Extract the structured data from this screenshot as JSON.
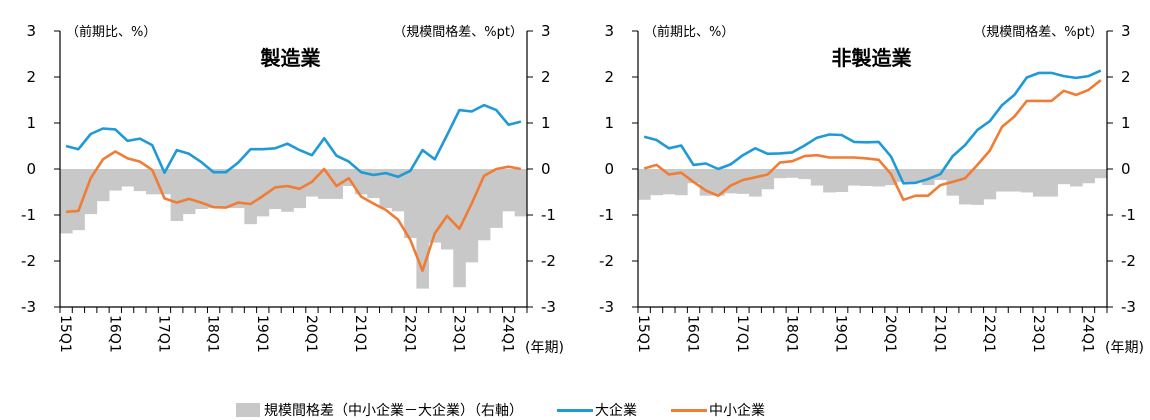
{
  "legend": {
    "bar_label": "規模間格差（中小企業－大企業）（右軸）",
    "large_label": "大企業",
    "small_label": "中小企業"
  },
  "colors": {
    "bar": "#c8c8c8",
    "large": "#1f9ad6",
    "small": "#f07c35"
  },
  "chart_data": [
    {
      "type": "bar+line",
      "title": "製造業",
      "left_axis_label": "（前期比、%）",
      "right_axis_label": "（規模間格差、%pt）",
      "x_unit_label": "(年期)",
      "ylim": [
        -3,
        3
      ],
      "y2lim": [
        -3,
        3
      ],
      "yticks": [
        -3,
        -2,
        -1,
        0,
        1,
        2,
        3
      ],
      "xtick_labels": [
        "15Q1",
        "16Q1",
        "17Q1",
        "18Q1",
        "19Q1",
        "20Q1",
        "21Q1",
        "22Q1",
        "23Q1",
        "24Q1"
      ],
      "x_start": "15Q1",
      "x_end": "24Q2",
      "series": [
        {
          "name": "大企業",
          "kind": "line",
          "axis": "left",
          "values": [
            0.5,
            0.43,
            0.76,
            0.88,
            0.86,
            0.61,
            0.66,
            0.52,
            -0.08,
            0.41,
            0.33,
            0.15,
            -0.07,
            -0.07,
            0.14,
            0.43,
            0.43,
            0.45,
            0.55,
            0.41,
            0.3,
            0.67,
            0.29,
            0.16,
            -0.07,
            -0.13,
            -0.09,
            -0.17,
            -0.04,
            0.41,
            0.21,
            0.74,
            1.28,
            1.25,
            1.39,
            1.28,
            0.96,
            1.03
          ]
        },
        {
          "name": "中小企業",
          "kind": "line",
          "axis": "left",
          "values": [
            -0.93,
            -0.91,
            -0.2,
            0.21,
            0.38,
            0.23,
            0.16,
            -0.02,
            -0.64,
            -0.73,
            -0.65,
            -0.73,
            -0.83,
            -0.84,
            -0.73,
            -0.76,
            -0.59,
            -0.4,
            -0.37,
            -0.43,
            -0.28,
            0.0,
            -0.37,
            -0.2,
            -0.6,
            -0.75,
            -0.89,
            -1.1,
            -1.54,
            -2.21,
            -1.4,
            -1.02,
            -1.3,
            -0.75,
            -0.15,
            0.0,
            0.05,
            0.0
          ]
        },
        {
          "name": "規模間格差（中小企業－大企業）",
          "kind": "bar",
          "axis": "right",
          "values": [
            -1.4,
            -1.33,
            -0.98,
            -0.7,
            -0.47,
            -0.38,
            -0.48,
            -0.55,
            -0.55,
            -1.13,
            -0.98,
            -0.87,
            -0.85,
            -0.85,
            -0.85,
            -1.2,
            -1.03,
            -0.87,
            -0.93,
            -0.85,
            -0.6,
            -0.65,
            -0.65,
            -0.37,
            -0.55,
            -0.63,
            -0.85,
            -0.92,
            -1.5,
            -2.6,
            -1.6,
            -1.75,
            -2.57,
            -2.03,
            -1.55,
            -1.28,
            -0.92,
            -1.03
          ]
        }
      ]
    },
    {
      "type": "bar+line",
      "title": "非製造業",
      "left_axis_label": "（前期比、%）",
      "right_axis_label": "（規模間格差、%pt）",
      "x_unit_label": "(年期)",
      "ylim": [
        -3,
        3
      ],
      "y2lim": [
        -3,
        3
      ],
      "yticks": [
        -3,
        -2,
        -1,
        0,
        1,
        2,
        3
      ],
      "xtick_labels": [
        "15Q1",
        "16Q1",
        "17Q1",
        "18Q1",
        "19Q1",
        "20Q1",
        "21Q1",
        "22Q1",
        "23Q1",
        "24Q1"
      ],
      "x_start": "15Q1",
      "x_end": "24Q2",
      "series": [
        {
          "name": "大企業",
          "kind": "line",
          "axis": "left",
          "values": [
            0.7,
            0.63,
            0.45,
            0.51,
            0.09,
            0.12,
            0.0,
            0.1,
            0.3,
            0.45,
            0.33,
            0.34,
            0.36,
            0.51,
            0.68,
            0.75,
            0.74,
            0.59,
            0.58,
            0.59,
            0.27,
            -0.31,
            -0.3,
            -0.22,
            -0.11,
            0.28,
            0.52,
            0.85,
            1.04,
            1.39,
            1.61,
            1.99,
            2.09,
            2.09,
            2.02,
            1.98,
            2.02,
            2.14
          ]
        },
        {
          "name": "中小企業",
          "kind": "line",
          "axis": "left",
          "values": [
            0.01,
            0.09,
            -0.12,
            -0.08,
            -0.28,
            -0.47,
            -0.58,
            -0.36,
            -0.24,
            -0.18,
            -0.12,
            0.14,
            0.17,
            0.28,
            0.3,
            0.25,
            0.25,
            0.25,
            0.23,
            0.2,
            -0.11,
            -0.67,
            -0.58,
            -0.58,
            -0.35,
            -0.28,
            -0.2,
            0.09,
            0.4,
            0.92,
            1.14,
            1.48,
            1.48,
            1.48,
            1.7,
            1.61,
            1.72,
            1.93
          ]
        },
        {
          "name": "規模間格差（中小企業－大企業）",
          "kind": "bar",
          "axis": "right",
          "values": [
            -0.67,
            -0.57,
            -0.55,
            -0.57,
            -0.31,
            -0.58,
            -0.58,
            -0.53,
            -0.54,
            -0.6,
            -0.44,
            -0.2,
            -0.19,
            -0.22,
            -0.36,
            -0.51,
            -0.5,
            -0.36,
            -0.37,
            -0.38,
            -0.35,
            -0.28,
            -0.28,
            -0.35,
            -0.24,
            -0.58,
            -0.77,
            -0.78,
            -0.66,
            -0.49,
            -0.49,
            -0.51,
            -0.6,
            -0.6,
            -0.33,
            -0.38,
            -0.31,
            -0.2
          ]
        }
      ]
    }
  ]
}
